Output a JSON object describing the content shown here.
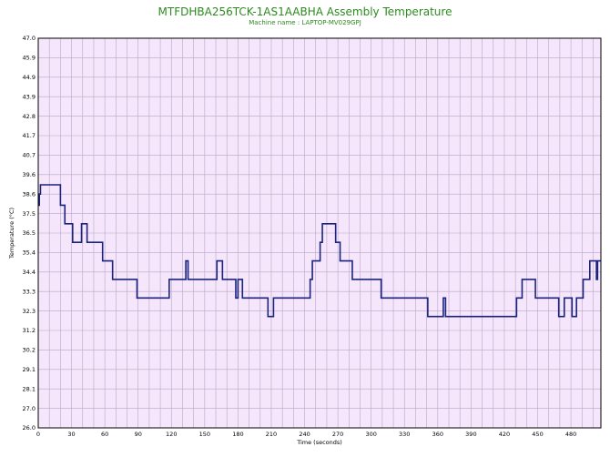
{
  "chart_data": {
    "type": "line",
    "title": "MTFDHBA256TCK-1AS1AABHA Assembly Temperature",
    "subtitle": "Machine name : LAPTOP-MV029GPJ",
    "xlabel": "Time (seconds)",
    "ylabel": "Temperature (°C)",
    "xlim": [
      0,
      507
    ],
    "ylim": [
      26.0,
      47.0
    ],
    "grid": true,
    "x_ticks": [
      0,
      30,
      60,
      90,
      120,
      150,
      180,
      210,
      240,
      270,
      300,
      330,
      360,
      390,
      420,
      450,
      480
    ],
    "y_ticks": [
      "47.0",
      "45.9",
      "44.9",
      "43.9",
      "42.8",
      "41.7",
      "40.7",
      "39.6",
      "38.6",
      "37.5",
      "36.5",
      "35.4",
      "34.4",
      "33.3",
      "32.3",
      "31.2",
      "30.2",
      "29.1",
      "28.1",
      "27.0",
      "26.0"
    ],
    "colors": {
      "line": "#1a237e",
      "plot_bg": "#f5e6fb",
      "grid": "#b8a6c8",
      "title": "#2d8a1f"
    },
    "series": [
      {
        "values": [
          [
            0,
            38.0
          ],
          [
            1,
            38.0
          ],
          [
            1,
            38.6
          ],
          [
            2,
            38.6
          ],
          [
            2,
            39.1
          ],
          [
            20,
            39.1
          ],
          [
            20,
            38.0
          ],
          [
            24,
            38.0
          ],
          [
            24,
            37.0
          ],
          [
            31,
            37.0
          ],
          [
            31,
            36.0
          ],
          [
            39,
            36.0
          ],
          [
            39,
            37.0
          ],
          [
            44,
            37.0
          ],
          [
            44,
            36.0
          ],
          [
            58,
            36.0
          ],
          [
            58,
            35.0
          ],
          [
            67,
            35.0
          ],
          [
            67,
            34.0
          ],
          [
            89,
            34.0
          ],
          [
            89,
            33.0
          ],
          [
            118,
            33.0
          ],
          [
            118,
            34.0
          ],
          [
            133,
            34.0
          ],
          [
            133,
            35.0
          ],
          [
            135,
            35.0
          ],
          [
            135,
            34.0
          ],
          [
            161,
            34.0
          ],
          [
            161,
            35.0
          ],
          [
            166,
            35.0
          ],
          [
            166,
            34.0
          ],
          [
            178,
            34.0
          ],
          [
            178,
            33.0
          ],
          [
            180,
            33.0
          ],
          [
            180,
            34.0
          ],
          [
            184,
            34.0
          ],
          [
            184,
            33.0
          ],
          [
            207,
            33.0
          ],
          [
            207,
            32.0
          ],
          [
            212,
            32.0
          ],
          [
            212,
            33.0
          ],
          [
            245,
            33.0
          ],
          [
            245,
            34.0
          ],
          [
            247,
            34.0
          ],
          [
            247,
            35.0
          ],
          [
            254,
            35.0
          ],
          [
            254,
            36.0
          ],
          [
            256,
            36.0
          ],
          [
            256,
            37.0
          ],
          [
            268,
            37.0
          ],
          [
            268,
            36.0
          ],
          [
            272,
            36.0
          ],
          [
            272,
            35.0
          ],
          [
            283,
            35.0
          ],
          [
            283,
            34.0
          ],
          [
            309,
            34.0
          ],
          [
            309,
            33.0
          ],
          [
            351,
            33.0
          ],
          [
            351,
            32.0
          ],
          [
            365,
            32.0
          ],
          [
            365,
            33.0
          ],
          [
            367,
            33.0
          ],
          [
            367,
            32.0
          ],
          [
            431,
            32.0
          ],
          [
            431,
            33.0
          ],
          [
            436,
            33.0
          ],
          [
            436,
            34.0
          ],
          [
            448,
            34.0
          ],
          [
            448,
            33.0
          ],
          [
            469,
            33.0
          ],
          [
            469,
            32.0
          ],
          [
            474,
            32.0
          ],
          [
            474,
            33.0
          ],
          [
            481,
            33.0
          ],
          [
            481,
            32.0
          ],
          [
            485,
            32.0
          ],
          [
            485,
            33.0
          ],
          [
            491,
            33.0
          ],
          [
            491,
            34.0
          ],
          [
            497,
            34.0
          ],
          [
            497,
            35.0
          ],
          [
            503,
            35.0
          ],
          [
            503,
            34.0
          ],
          [
            504,
            34.0
          ],
          [
            504,
            35.0
          ],
          [
            507,
            35.0
          ]
        ]
      }
    ]
  }
}
